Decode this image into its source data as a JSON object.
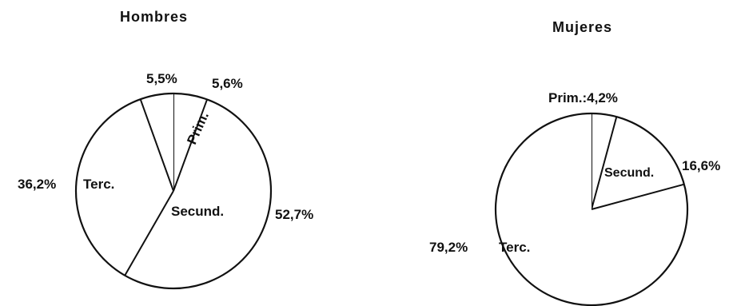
{
  "chart_data": [
    {
      "type": "pie",
      "title": "Hombres",
      "slices": [
        {
          "name": "Prim.",
          "value": 5.6,
          "value_label": "5,6%"
        },
        {
          "name": "Secund.",
          "value": 52.7,
          "value_label": "52,7%"
        },
        {
          "name": "Terc.",
          "value": 36.2,
          "value_label": "36,2%"
        },
        {
          "name": "",
          "value": 5.5,
          "value_label": "5,5%"
        }
      ]
    },
    {
      "type": "pie",
      "title": "Mujeres",
      "slices": [
        {
          "name": "Prim.",
          "value": 4.2,
          "value_label": "Prim.:4,2%"
        },
        {
          "name": "Secund.",
          "value": 16.6,
          "value_label": "16,6%"
        },
        {
          "name": "Terc.",
          "value": 79.2,
          "value_label": "79,2%"
        }
      ]
    }
  ]
}
